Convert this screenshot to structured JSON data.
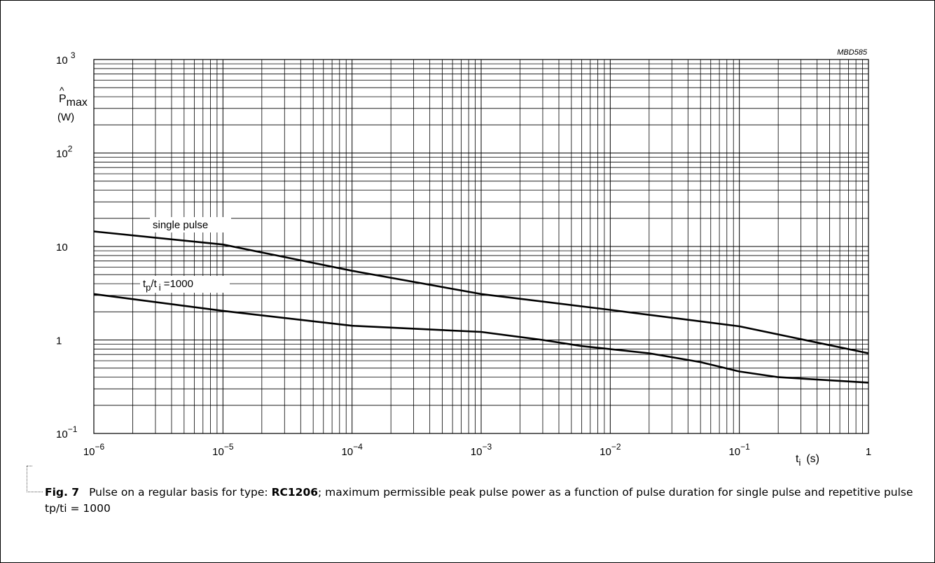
{
  "chart_data": {
    "type": "line",
    "code": "MBD585",
    "xscale": "log",
    "yscale": "log",
    "xlim": [
      1e-06,
      1
    ],
    "ylim": [
      0.1,
      1000
    ],
    "grid": true,
    "ylabel": {
      "main": "P",
      "sub": "max",
      "unit": "(W)"
    },
    "xlabel": {
      "main": "t",
      "sub": "i",
      "unit": "(s)"
    },
    "xticks": [
      {
        "base": "10",
        "exp": "−6"
      },
      {
        "base": "10",
        "exp": "−5"
      },
      {
        "base": "10",
        "exp": "−4"
      },
      {
        "base": "10",
        "exp": "−3"
      },
      {
        "base": "10",
        "exp": "−2"
      },
      {
        "base": "10",
        "exp": "−1"
      },
      {
        "base": "1",
        "exp": ""
      }
    ],
    "yticks": [
      {
        "base": "10",
        "exp": "−1"
      },
      {
        "base": "1",
        "exp": ""
      },
      {
        "base": "10",
        "exp": ""
      },
      {
        "base": "10",
        "exp": "2"
      },
      {
        "base": "10 ",
        "exp": "3"
      }
    ],
    "series": [
      {
        "name": "single pulse",
        "x": [
          1e-06,
          1e-05,
          0.0001,
          0.001,
          0.01,
          0.1,
          1
        ],
        "y": [
          14.5,
          10.5,
          5.5,
          3.1,
          2.1,
          1.4,
          0.72
        ]
      },
      {
        "name": "t_p/t_i =1000",
        "label": {
          "t1": "t",
          "s1": "p",
          "mid": "/t",
          "s2": "i",
          "rest": " =1000"
        },
        "x": [
          1e-06,
          1e-05,
          0.0001,
          0.001,
          0.003,
          0.006,
          0.02,
          0.05,
          0.1,
          0.2,
          1
        ],
        "y": [
          3.1,
          2.05,
          1.42,
          1.22,
          1.0,
          0.86,
          0.72,
          0.58,
          0.46,
          0.4,
          0.35
        ]
      }
    ]
  },
  "caption": {
    "fig": "Fig. 7",
    "pre": "Pulse on a regular basis for type: ",
    "type": "RC1206",
    "post": "; maximum permissible peak pulse power as a function of pulse duration for single pulse and repetitive pulse tp/ti = 1000"
  }
}
